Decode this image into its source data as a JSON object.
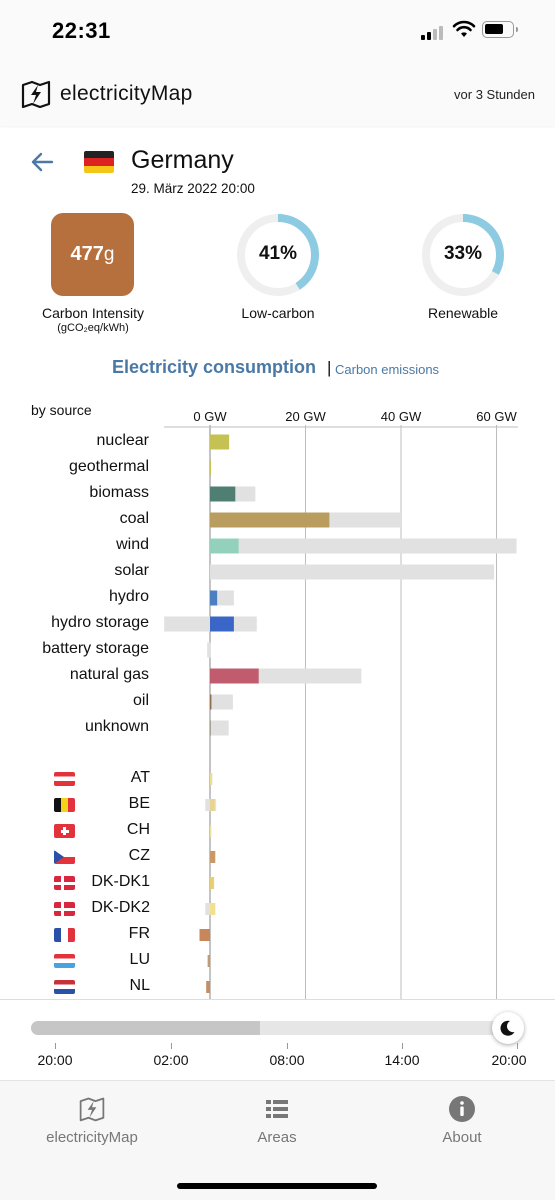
{
  "status_bar": {
    "time": "22:31"
  },
  "app": {
    "logo_text": "electricityMap",
    "updated": "vor 3 Stunden"
  },
  "zone": {
    "name": "Germany",
    "datetime": "29. März 2022 20:00"
  },
  "stats": {
    "carbon_intensity_value": "477",
    "carbon_intensity_unit": "g",
    "carbon_intensity_label": "Carbon Intensity",
    "carbon_intensity_units_label": "(gCO₂eq/kWh)",
    "low_carbon_value": "41%",
    "low_carbon_label": "Low-carbon",
    "low_carbon_fraction": 0.41,
    "renewable_value": "33%",
    "renewable_label": "Renewable",
    "renewable_fraction": 0.33,
    "carbon_intensity_color": "#b5703d",
    "donut_color": "#8ccbe2"
  },
  "tabs": {
    "active": "Electricity consumption",
    "separator": "|",
    "inactive": "Carbon emissions"
  },
  "chart_data": {
    "type": "bar",
    "title": "Electricity consumption",
    "section_label": "by source",
    "axis": {
      "ticks": [
        "0 GW",
        "20 GW",
        "40 GW",
        "60 GW"
      ],
      "tick_values": [
        0,
        20,
        40,
        60
      ],
      "xlim": [
        -10,
        64.5
      ],
      "unit": "GW"
    },
    "sources": [
      {
        "name": "nuclear",
        "production": 4.0,
        "capacity": 4.0,
        "color": "#c6c153"
      },
      {
        "name": "geothermal",
        "production": 0.04,
        "capacity": 0.05,
        "color": "#c6c153"
      },
      {
        "name": "biomass",
        "production": 5.3,
        "capacity": 9.5,
        "color": "#4f7f72"
      },
      {
        "name": "coal",
        "production": 25.0,
        "capacity": 40.0,
        "color": "#b89d5e"
      },
      {
        "name": "wind",
        "production": 6.0,
        "capacity": 64.2,
        "color": "#93d1bd"
      },
      {
        "name": "solar",
        "production": 0,
        "capacity": 59.5,
        "color": "#f5d76e"
      },
      {
        "name": "hydro",
        "production": 1.5,
        "capacity": 5.0,
        "color": "#4a7fc1"
      },
      {
        "name": "hydro storage",
        "production": 5.0,
        "capacity": 9.8,
        "capacity_negative": -9.6,
        "color": "#3a66c8"
      },
      {
        "name": "battery storage",
        "production": 0,
        "capacity": 0.2,
        "capacity_negative": -0.6,
        "color": "#3a66c8"
      },
      {
        "name": "natural gas",
        "production": 10.2,
        "capacity": 31.7,
        "color": "#c05c6e"
      },
      {
        "name": "oil",
        "production": 0.3,
        "capacity": 4.8,
        "color": "#8f6e4e"
      },
      {
        "name": "unknown",
        "production": 0.2,
        "capacity": 3.9,
        "color": "#a89f93"
      }
    ],
    "exchanges": [
      {
        "code": "AT",
        "value": 0.4,
        "capacity": 0.5,
        "color": "#f0dd85"
      },
      {
        "code": "BE",
        "value": 1.0,
        "capacity": 1.3,
        "capacity_negative": -1.0,
        "color": "#e6d591"
      },
      {
        "code": "CH",
        "value": 0.25,
        "capacity": 0.3,
        "color": "#e7e2a6"
      },
      {
        "code": "CZ",
        "value": 1.1,
        "capacity": 1.1,
        "color": "#c89a68"
      },
      {
        "code": "DK-DK1",
        "value": 0.8,
        "capacity": 0.9,
        "color": "#e6cf6f"
      },
      {
        "code": "DK-DK2",
        "value": 1.1,
        "capacity": 1.1,
        "capacity_negative": -1.0,
        "color": "#f1e08f"
      },
      {
        "code": "FR",
        "value": -2.2,
        "capacity": 0,
        "color": "#c8875a"
      },
      {
        "code": "LU",
        "value": -0.5,
        "capacity": 0,
        "color": "#c49a72"
      },
      {
        "code": "NL",
        "value": -0.8,
        "capacity": 0,
        "color": "#c48f66"
      }
    ]
  },
  "timeline": {
    "labels": [
      "20:00",
      "02:00",
      "08:00",
      "14:00",
      "20:00"
    ],
    "progress": 0.47,
    "knob_icon": "moon-icon"
  },
  "nav": {
    "items": [
      {
        "label": "electricityMap",
        "icon": "map-icon"
      },
      {
        "label": "Areas",
        "icon": "list-icon"
      },
      {
        "label": "About",
        "icon": "info-icon"
      }
    ]
  }
}
